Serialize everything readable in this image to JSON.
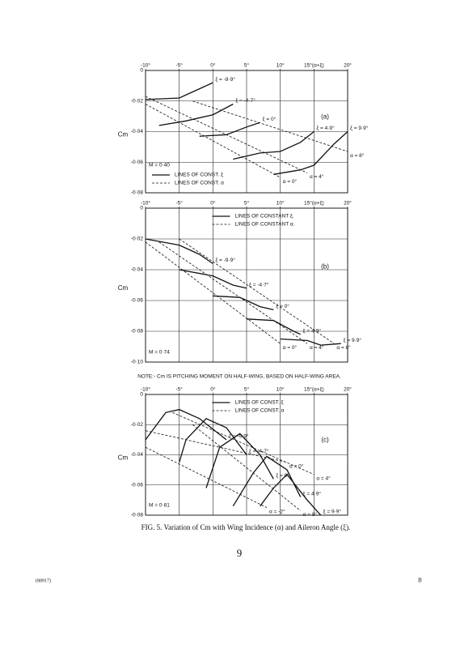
{
  "chart_data": [
    {
      "type": "line",
      "annotation": "(a)",
      "mach_label": "M = 0·40",
      "ylabel": "Cm",
      "xlim": [
        -10,
        20
      ],
      "xticks": [
        {
          "value": -10,
          "label": "-10°"
        },
        {
          "value": -5,
          "label": "-5°"
        },
        {
          "value": 0,
          "label": "0°"
        },
        {
          "value": 5,
          "label": "5°"
        },
        {
          "value": 10,
          "label": "10°"
        },
        {
          "value": 15,
          "label": "15°(α+ξ)"
        },
        {
          "value": 20,
          "label": "20°"
        }
      ],
      "ylim": [
        -0.08,
        0
      ],
      "yticks": [
        0,
        {
          "value": -0.02,
          "label": "-0·02"
        },
        {
          "value": -0.04,
          "label": "-0·04"
        },
        {
          "value": -0.06,
          "label": "-0·06"
        },
        {
          "value": -0.08,
          "label": "-0·08"
        }
      ],
      "grid": true,
      "legend_position": "lower left",
      "legend": [
        {
          "label": "LINES OF CONST. ξ",
          "style": "solid"
        },
        {
          "label": "LINES OF CONST. α",
          "style": "dashed"
        }
      ],
      "series": [
        {
          "name": "ξ = -9·9°",
          "style": "solid",
          "color": "#111",
          "x": [
            -10,
            -5,
            -2,
            0
          ],
          "values": [
            -0.019,
            -0.018,
            -0.012,
            -0.008
          ]
        },
        {
          "name": "ξ = -4·7°",
          "style": "solid",
          "color": "#111",
          "x": [
            -8,
            -4,
            0,
            3
          ],
          "values": [
            -0.036,
            -0.033,
            -0.029,
            -0.022
          ]
        },
        {
          "name": "ξ = 0°",
          "style": "solid",
          "color": "#111",
          "x": [
            -2,
            2,
            5,
            7
          ],
          "values": [
            -0.043,
            -0.042,
            -0.037,
            -0.034
          ]
        },
        {
          "name": "ξ = 4·9°",
          "style": "solid",
          "color": "#111",
          "x": [
            3,
            7,
            10,
            13,
            15
          ],
          "values": [
            -0.058,
            -0.054,
            -0.053,
            -0.047,
            -0.04
          ]
        },
        {
          "name": "ξ = 9·9°",
          "style": "solid",
          "color": "#111",
          "x": [
            9,
            13,
            15,
            18,
            20
          ],
          "values": [
            -0.068,
            -0.065,
            -0.062,
            -0.048,
            -0.04
          ]
        },
        {
          "name": "α = 0°",
          "style": "dashed",
          "color": "#111",
          "x": [
            -10,
            10
          ],
          "values": [
            -0.022,
            -0.07
          ]
        },
        {
          "name": "α = 4°",
          "style": "dashed",
          "color": "#111",
          "x": [
            -10,
            14
          ],
          "values": [
            -0.017,
            -0.067
          ]
        },
        {
          "name": "α = 8°",
          "style": "dashed",
          "color": "#111",
          "x": [
            -3,
            20
          ],
          "values": [
            -0.02,
            -0.053
          ]
        }
      ]
    },
    {
      "type": "line",
      "annotation": "(b)",
      "mach_label": "M = 0·74",
      "ylabel": "Cm",
      "xlim": [
        -10,
        20
      ],
      "xticks": [
        {
          "value": -10,
          "label": "-10°"
        },
        {
          "value": -5,
          "label": "-5°"
        },
        {
          "value": 0,
          "label": "0°"
        },
        {
          "value": 5,
          "label": "5°"
        },
        {
          "value": 10,
          "label": "10°"
        },
        {
          "value": 15,
          "label": "15°(α+ξ)"
        },
        {
          "value": 20,
          "label": "20°"
        }
      ],
      "ylim": [
        -0.1,
        0
      ],
      "yticks": [
        0,
        {
          "value": -0.02,
          "label": "-0·02"
        },
        {
          "value": -0.04,
          "label": "-0·04"
        },
        {
          "value": -0.06,
          "label": "-0·06"
        },
        {
          "value": -0.08,
          "label": "-0·08"
        },
        {
          "value": -0.1,
          "label": "-0·10"
        }
      ],
      "grid": true,
      "legend_position": "upper right",
      "legend": [
        {
          "label": "LINES OF CONSTANT ξ.",
          "style": "solid"
        },
        {
          "label": "LINES OF CONSTANT α.",
          "style": "dashed"
        }
      ],
      "series": [
        {
          "name": "ξ = -9·9°",
          "style": "solid",
          "color": "#111",
          "x": [
            -10,
            -5,
            -2,
            0
          ],
          "values": [
            -0.02,
            -0.024,
            -0.03,
            -0.036
          ]
        },
        {
          "name": "ξ = -4·7°",
          "style": "solid",
          "color": "#111",
          "x": [
            -5,
            0,
            3,
            5
          ],
          "values": [
            -0.04,
            -0.044,
            -0.05,
            -0.052
          ]
        },
        {
          "name": "ξ = 0°",
          "style": "solid",
          "color": "#111",
          "x": [
            0,
            4,
            7,
            9
          ],
          "values": [
            -0.057,
            -0.058,
            -0.064,
            -0.066
          ]
        },
        {
          "name": "ξ = 4·9°",
          "style": "solid",
          "color": "#111",
          "x": [
            5,
            9,
            12,
            13
          ],
          "values": [
            -0.072,
            -0.073,
            -0.08,
            -0.082
          ]
        },
        {
          "name": "ξ = 9·9°",
          "style": "solid",
          "color": "#111",
          "x": [
            10,
            14,
            16,
            19
          ],
          "values": [
            -0.085,
            -0.086,
            -0.089,
            -0.088
          ]
        },
        {
          "name": "α = 0°",
          "style": "dashed",
          "color": "#111",
          "x": [
            -10,
            10
          ],
          "values": [
            -0.022,
            -0.088
          ]
        },
        {
          "name": "α = 4°",
          "style": "dashed",
          "color": "#111",
          "x": [
            -8,
            14
          ],
          "values": [
            -0.022,
            -0.088
          ]
        },
        {
          "name": "α = 8°",
          "style": "dashed",
          "color": "#111",
          "x": [
            -5,
            18
          ],
          "values": [
            -0.02,
            -0.088
          ]
        }
      ]
    },
    {
      "type": "line",
      "annotation": "(c)",
      "mach_label": "M = 0·81",
      "ylabel": "Cm",
      "xlim": [
        -10,
        20
      ],
      "xticks": [
        {
          "value": -10,
          "label": "-10°"
        },
        {
          "value": -5,
          "label": "-5°"
        },
        {
          "value": 0,
          "label": "0°"
        },
        {
          "value": 5,
          "label": "5°"
        },
        {
          "value": 10,
          "label": "10°"
        },
        {
          "value": 15,
          "label": "15°(α+ξ)"
        },
        {
          "value": 20,
          "label": "20°"
        }
      ],
      "ylim": [
        -0.08,
        0
      ],
      "yticks": [
        0,
        {
          "value": -0.02,
          "label": "-0·02"
        },
        {
          "value": -0.04,
          "label": "-0·04"
        },
        {
          "value": -0.06,
          "label": "-0·06"
        },
        {
          "value": -0.08,
          "label": "-0·08"
        }
      ],
      "grid": true,
      "legend_position": "upper right",
      "legend": [
        {
          "label": "LINES OF CONST. ξ",
          "style": "solid"
        },
        {
          "label": "LINES OF CONST. α",
          "style": "dashed"
        }
      ],
      "series": [
        {
          "name": "ξ = -9·9°",
          "style": "solid",
          "color": "#111",
          "x": [
            -10,
            -7,
            -5,
            -2,
            2
          ],
          "values": [
            -0.03,
            -0.012,
            -0.01,
            -0.016,
            -0.03
          ]
        },
        {
          "name": "ξ = -4·7°",
          "style": "solid",
          "color": "#111",
          "x": [
            -5,
            -4,
            -1,
            2,
            5
          ],
          "values": [
            -0.045,
            -0.03,
            -0.016,
            -0.022,
            -0.04
          ]
        },
        {
          "name": "ξ = 0°",
          "style": "solid",
          "color": "#111",
          "x": [
            -1,
            1,
            4,
            7,
            9
          ],
          "values": [
            -0.062,
            -0.035,
            -0.026,
            -0.04,
            -0.056
          ]
        },
        {
          "name": "ξ = 4·9°",
          "style": "solid",
          "color": "#111",
          "x": [
            3,
            6,
            8,
            11,
            13
          ],
          "values": [
            -0.074,
            -0.052,
            -0.041,
            -0.05,
            -0.068
          ]
        },
        {
          "name": "ξ = 9·9°",
          "style": "solid",
          "color": "#111",
          "x": [
            7,
            9,
            11,
            14,
            16
          ],
          "values": [
            -0.074,
            -0.062,
            -0.053,
            -0.07,
            -0.08
          ]
        },
        {
          "name": "α = -2°",
          "style": "dashed",
          "color": "#111",
          "x": [
            -10,
            8
          ],
          "values": [
            -0.035,
            -0.075
          ]
        },
        {
          "name": "α = 0°",
          "style": "dashed",
          "color": "#111",
          "x": [
            -10,
            11
          ],
          "values": [
            -0.024,
            -0.045
          ]
        },
        {
          "name": "α = 4°",
          "style": "dashed",
          "color": "#111",
          "x": [
            -6,
            15
          ],
          "values": [
            -0.012,
            -0.053
          ]
        },
        {
          "name": "α = 8°",
          "style": "dashed",
          "color": "#111",
          "x": [
            -3,
            13
          ],
          "values": [
            -0.02,
            -0.077
          ]
        }
      ]
    }
  ],
  "document": {
    "note": "NOTE:- Cm IS PITCHING MOMENT ON HALF-WING, BASED ON HALF-WING AREA.",
    "caption": "FIG. 5. Variation of Cm with Wing Incidence (α) and Aileron Angle (ξ).",
    "page_number": "9",
    "report_code": "(88917)",
    "signature": "B"
  }
}
